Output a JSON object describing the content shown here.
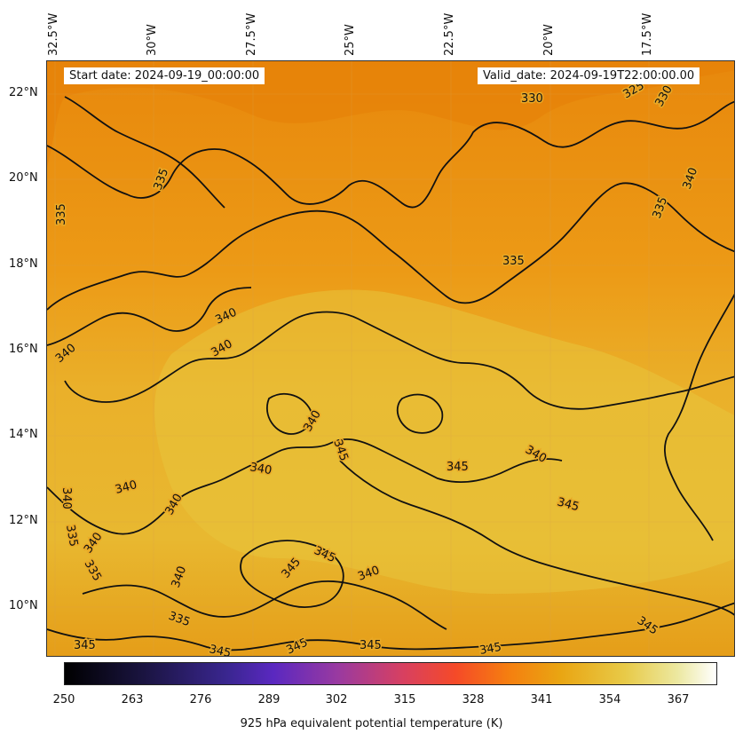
{
  "map": {
    "start_date": "Start date: 2024-09-19_00:00:00",
    "valid_date": "Valid_date: 2024-09-19T22:00:00.00",
    "lon_labels": [
      "32.5°W",
      "30°W",
      "27.5°W",
      "25°W",
      "22.5°W",
      "20°W",
      "17.5°W"
    ],
    "lat_labels": [
      "22°N",
      "20°N",
      "18°N",
      "16°N",
      "14°N",
      "12°N",
      "10°N"
    ],
    "contour_labels": [
      "330",
      "325",
      "330",
      "335",
      "340",
      "335",
      "335",
      "335",
      "340",
      "340",
      "340",
      "345",
      "340",
      "340",
      "340",
      "345",
      "340",
      "340",
      "345",
      "335",
      "340",
      "345",
      "340",
      "335",
      "345",
      "345",
      "345",
      "345",
      "345",
      "345",
      "335",
      "340",
      "340",
      "345"
    ],
    "colors": {
      "field_dark": "#e8860a",
      "field_mid": "#eea51a",
      "field_light": "#e9c23a",
      "contour": "#111111"
    }
  },
  "colorbar": {
    "ticks": [
      "250",
      "263",
      "276",
      "289",
      "302",
      "315",
      "328",
      "341",
      "354",
      "367"
    ],
    "label": "925 hPa equivalent potential temperature (K)",
    "colormap": "CMRmap"
  }
}
